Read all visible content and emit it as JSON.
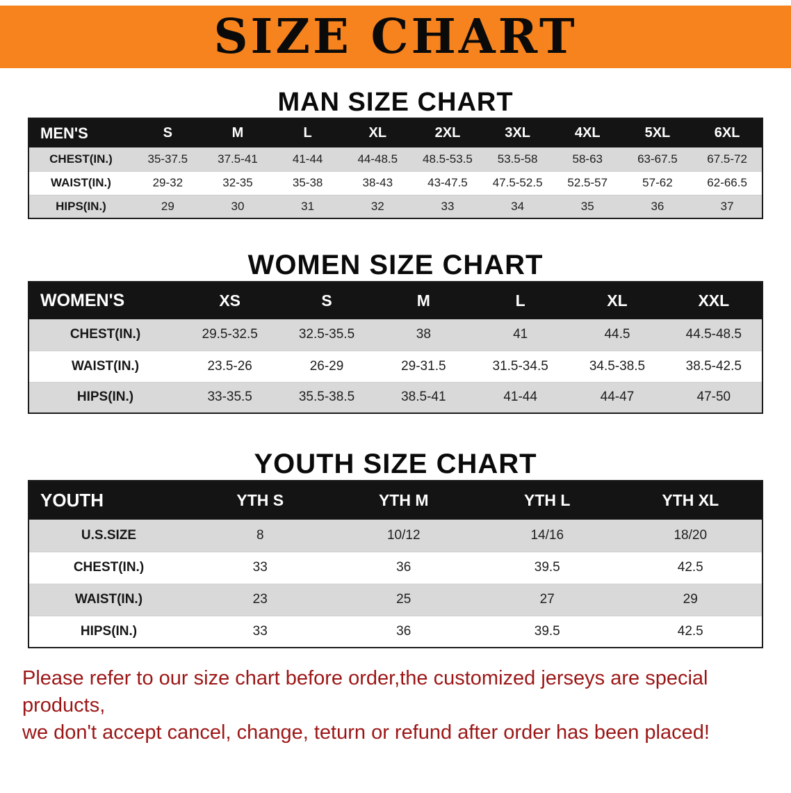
{
  "colors": {
    "banner_bg": "#f6831e",
    "table_header_bg": "#141414",
    "stripe": "#d9d9d9",
    "disclaimer_red": "#9c1616"
  },
  "banner": {
    "title": "SIZE CHART"
  },
  "sections": [
    {
      "heading": "MAN SIZE CHART",
      "table": {
        "header": [
          "MEN'S",
          "S",
          "M",
          "L",
          "XL",
          "2XL",
          "3XL",
          "4XL",
          "5XL",
          "6XL"
        ],
        "rows": [
          [
            "CHEST(IN.)",
            "35-37.5",
            "37.5-41",
            "41-44",
            "44-48.5",
            "48.5-53.5",
            "53.5-58",
            "58-63",
            "63-67.5",
            "67.5-72"
          ],
          [
            "WAIST(IN.)",
            "29-32",
            "32-35",
            "35-38",
            "38-43",
            "43-47.5",
            "47.5-52.5",
            "52.5-57",
            "57-62",
            "62-66.5"
          ],
          [
            "HIPS(IN.)",
            "29",
            "30",
            "31",
            "32",
            "33",
            "34",
            "35",
            "36",
            "37"
          ]
        ]
      }
    },
    {
      "heading": "WOMEN SIZE CHART",
      "table": {
        "header": [
          "WOMEN'S",
          "XS",
          "S",
          "M",
          "L",
          "XL",
          "XXL"
        ],
        "rows": [
          [
            "CHEST(IN.)",
            "29.5-32.5",
            "32.5-35.5",
            "38",
            "41",
            "44.5",
            "44.5-48.5"
          ],
          [
            "WAIST(IN.)",
            "23.5-26",
            "26-29",
            "29-31.5",
            "31.5-34.5",
            "34.5-38.5",
            "38.5-42.5"
          ],
          [
            "HIPS(IN.)",
            "33-35.5",
            "35.5-38.5",
            "38.5-41",
            "41-44",
            "44-47",
            "47-50"
          ]
        ]
      }
    },
    {
      "heading": "YOUTH SIZE CHART",
      "table": {
        "header": [
          "YOUTH",
          "YTH S",
          "YTH M",
          "YTH L",
          "YTH XL"
        ],
        "rows": [
          [
            "U.S.SIZE",
            "8",
            "10/12",
            "14/16",
            "18/20"
          ],
          [
            "CHEST(IN.)",
            "33",
            "36",
            "39.5",
            "42.5"
          ],
          [
            "WAIST(IN.)",
            "23",
            "25",
            "27",
            "29"
          ],
          [
            "HIPS(IN.)",
            "33",
            "36",
            "39.5",
            "42.5"
          ]
        ]
      }
    }
  ],
  "disclaimer": {
    "line1": "Please refer to our size chart before order,the customized jerseys are special products,",
    "line2": "we don't accept cancel, change, teturn or refund after order has been placed!"
  }
}
